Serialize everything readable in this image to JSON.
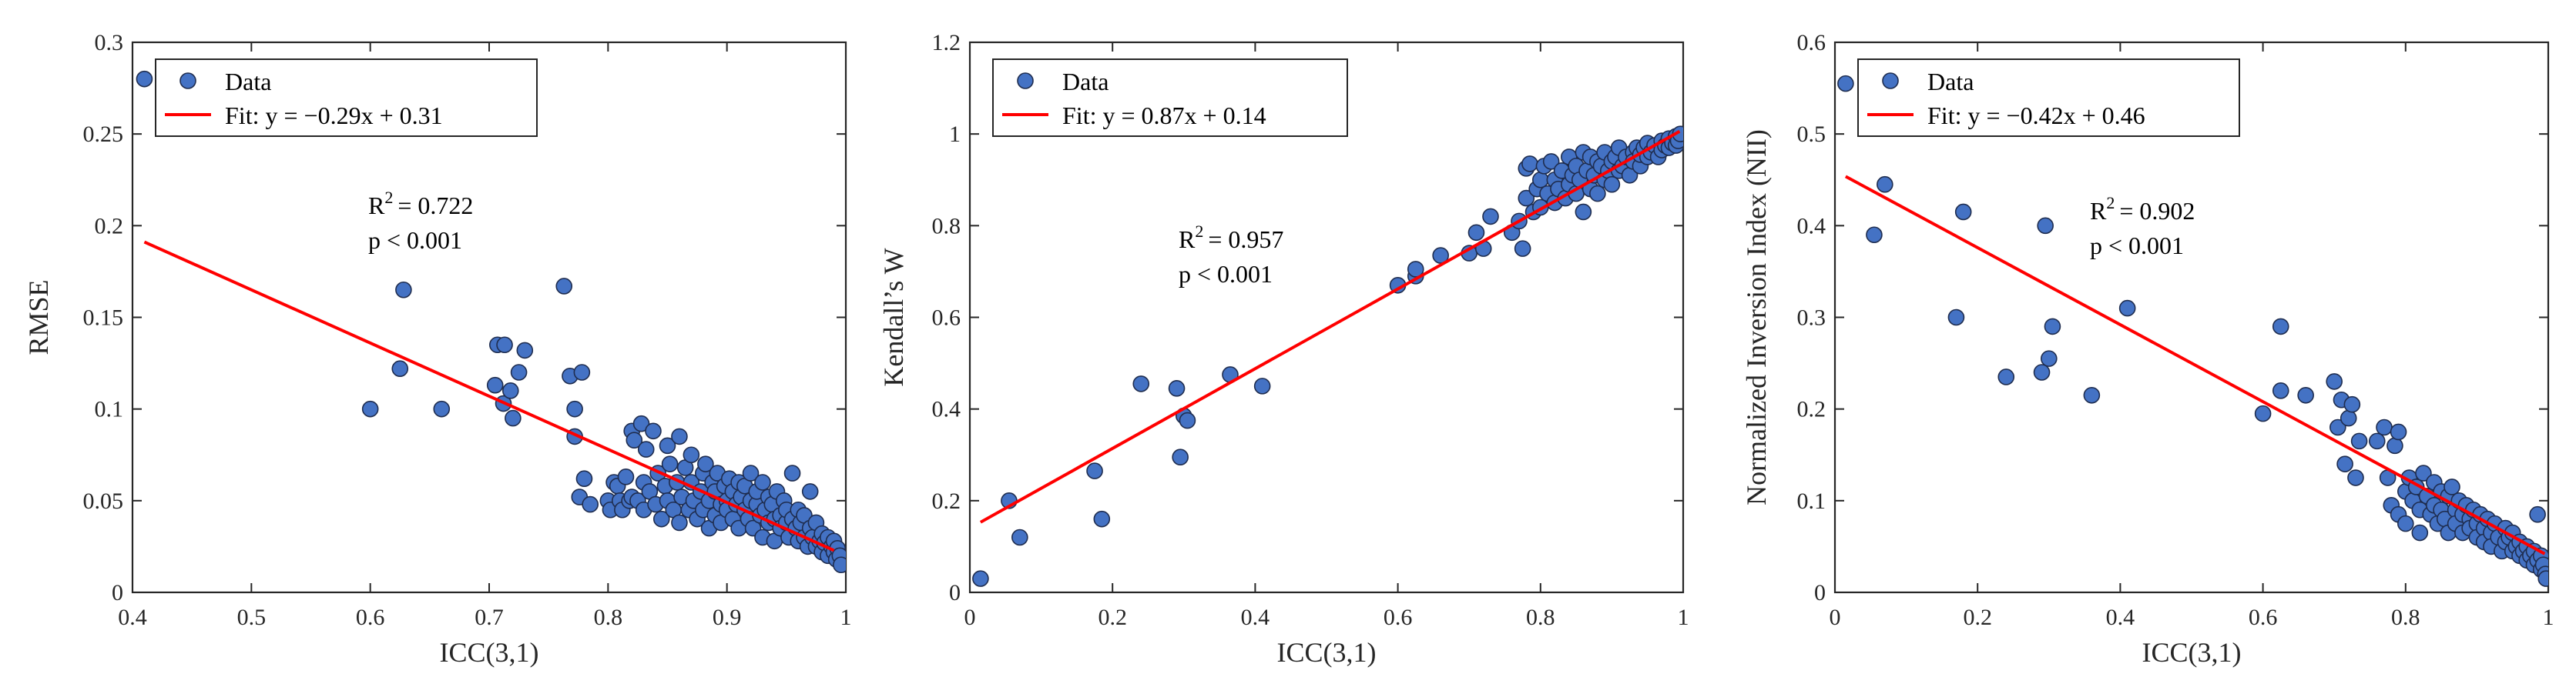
{
  "chart_data": [
    {
      "type": "scatter",
      "title": "",
      "xlabel": "ICC(3,1)",
      "ylabel": "RMSE",
      "xlim": [
        0.4,
        1
      ],
      "ylim": [
        0,
        0.3
      ],
      "xticks": [
        0.4,
        0.5,
        0.6,
        0.7,
        0.8,
        0.9,
        1
      ],
      "xtick_labels": [
        "0.4",
        "0.5",
        "0.6",
        "0.7",
        "0.8",
        "0.9",
        "1"
      ],
      "yticks": [
        0,
        0.05,
        0.1,
        0.15,
        0.2,
        0.25,
        0.3
      ],
      "ytick_labels": [
        "0",
        "0.05",
        "0.1",
        "0.15",
        "0.2",
        "0.25",
        "0.3"
      ],
      "legend": {
        "data_label": "Data",
        "fit_label": "Fit: y = −0.29x + 0.31",
        "position": "top-left"
      },
      "fit": {
        "slope": -0.29,
        "intercept": 0.31,
        "x_range": [
          0.41,
          0.99
        ]
      },
      "r2_prefix": "R",
      "r2_sup": "2",
      "r2_value": "= 0.722",
      "p_text": "p < 0.001",
      "colors": {
        "marker": "#4472c4",
        "edge": "#1f2d4f",
        "fit": "#ff0000"
      },
      "points": [
        [
          0.41,
          0.28
        ],
        [
          0.6,
          0.1
        ],
        [
          0.625,
          0.122
        ],
        [
          0.628,
          0.165
        ],
        [
          0.66,
          0.1
        ],
        [
          0.705,
          0.113
        ],
        [
          0.707,
          0.135
        ],
        [
          0.712,
          0.103
        ],
        [
          0.713,
          0.135
        ],
        [
          0.718,
          0.11
        ],
        [
          0.72,
          0.095
        ],
        [
          0.725,
          0.12
        ],
        [
          0.73,
          0.132
        ],
        [
          0.763,
          0.167
        ],
        [
          0.768,
          0.118
        ],
        [
          0.772,
          0.1
        ],
        [
          0.772,
          0.085
        ],
        [
          0.776,
          0.052
        ],
        [
          0.778,
          0.12
        ],
        [
          0.78,
          0.062
        ],
        [
          0.785,
          0.048
        ],
        [
          0.8,
          0.05
        ],
        [
          0.802,
          0.045
        ],
        [
          0.805,
          0.06
        ],
        [
          0.808,
          0.058
        ],
        [
          0.81,
          0.05
        ],
        [
          0.812,
          0.045
        ],
        [
          0.815,
          0.063
        ],
        [
          0.818,
          0.05
        ],
        [
          0.82,
          0.088
        ],
        [
          0.82,
          0.052
        ],
        [
          0.822,
          0.083
        ],
        [
          0.825,
          0.05
        ],
        [
          0.828,
          0.092
        ],
        [
          0.83,
          0.06
        ],
        [
          0.83,
          0.045
        ],
        [
          0.832,
          0.078
        ],
        [
          0.835,
          0.055
        ],
        [
          0.838,
          0.088
        ],
        [
          0.84,
          0.048
        ],
        [
          0.842,
          0.065
        ],
        [
          0.845,
          0.04
        ],
        [
          0.848,
          0.058
        ],
        [
          0.85,
          0.08
        ],
        [
          0.85,
          0.05
        ],
        [
          0.852,
          0.07
        ],
        [
          0.855,
          0.045
        ],
        [
          0.858,
          0.06
        ],
        [
          0.86,
          0.085
        ],
        [
          0.86,
          0.038
        ],
        [
          0.862,
          0.052
        ],
        [
          0.865,
          0.068
        ],
        [
          0.868,
          0.045
        ],
        [
          0.87,
          0.06
        ],
        [
          0.87,
          0.075
        ],
        [
          0.872,
          0.05
        ],
        [
          0.875,
          0.04
        ],
        [
          0.878,
          0.055
        ],
        [
          0.88,
          0.065
        ],
        [
          0.88,
          0.045
        ],
        [
          0.882,
          0.07
        ],
        [
          0.885,
          0.05
        ],
        [
          0.885,
          0.035
        ],
        [
          0.888,
          0.06
        ],
        [
          0.89,
          0.042
        ],
        [
          0.89,
          0.055
        ],
        [
          0.892,
          0.065
        ],
        [
          0.895,
          0.048
        ],
        [
          0.895,
          0.038
        ],
        [
          0.898,
          0.058
        ],
        [
          0.9,
          0.05
        ],
        [
          0.9,
          0.045
        ],
        [
          0.902,
          0.062
        ],
        [
          0.905,
          0.04
        ],
        [
          0.905,
          0.055
        ],
        [
          0.908,
          0.048
        ],
        [
          0.91,
          0.035
        ],
        [
          0.91,
          0.06
        ],
        [
          0.912,
          0.052
        ],
        [
          0.915,
          0.045
        ],
        [
          0.915,
          0.058
        ],
        [
          0.918,
          0.04
        ],
        [
          0.92,
          0.05
        ],
        [
          0.92,
          0.065
        ],
        [
          0.922,
          0.035
        ],
        [
          0.925,
          0.048
        ],
        [
          0.925,
          0.055
        ],
        [
          0.928,
          0.042
        ],
        [
          0.93,
          0.03
        ],
        [
          0.93,
          0.06
        ],
        [
          0.932,
          0.045
        ],
        [
          0.935,
          0.052
        ],
        [
          0.935,
          0.038
        ],
        [
          0.938,
          0.048
        ],
        [
          0.94,
          0.04
        ],
        [
          0.94,
          0.028
        ],
        [
          0.942,
          0.055
        ],
        [
          0.945,
          0.042
        ],
        [
          0.945,
          0.035
        ],
        [
          0.948,
          0.05
        ],
        [
          0.95,
          0.038
        ],
        [
          0.95,
          0.045
        ],
        [
          0.952,
          0.03
        ],
        [
          0.955,
          0.04
        ],
        [
          0.955,
          0.065
        ],
        [
          0.958,
          0.035
        ],
        [
          0.96,
          0.045
        ],
        [
          0.96,
          0.028
        ],
        [
          0.962,
          0.038
        ],
        [
          0.965,
          0.03
        ],
        [
          0.965,
          0.042
        ],
        [
          0.968,
          0.025
        ],
        [
          0.97,
          0.035
        ],
        [
          0.97,
          0.055
        ],
        [
          0.972,
          0.03
        ],
        [
          0.975,
          0.025
        ],
        [
          0.975,
          0.038
        ],
        [
          0.978,
          0.028
        ],
        [
          0.98,
          0.032
        ],
        [
          0.98,
          0.022
        ],
        [
          0.982,
          0.027
        ],
        [
          0.985,
          0.03
        ],
        [
          0.985,
          0.02
        ],
        [
          0.988,
          0.025
        ],
        [
          0.99,
          0.022
        ],
        [
          0.99,
          0.028
        ],
        [
          0.992,
          0.018
        ],
        [
          0.993,
          0.024
        ],
        [
          0.995,
          0.02
        ],
        [
          0.996,
          0.015
        ]
      ]
    },
    {
      "type": "scatter",
      "title": "",
      "xlabel": "ICC(3,1)",
      "ylabel": "Kendall’s W",
      "xlim": [
        0,
        1
      ],
      "ylim": [
        0,
        1.2
      ],
      "xticks": [
        0,
        0.2,
        0.4,
        0.6,
        0.8,
        1
      ],
      "xtick_labels": [
        "0",
        "0.2",
        "0.4",
        "0.6",
        "0.8",
        "1"
      ],
      "yticks": [
        0,
        0.2,
        0.4,
        0.6,
        0.8,
        1,
        1.2
      ],
      "ytick_labels": [
        "0",
        "0.2",
        "0.4",
        "0.6",
        "0.8",
        "1",
        "1.2"
      ],
      "legend": {
        "data_label": "Data",
        "fit_label": "Fit: y = 0.87x + 0.14",
        "position": "top-left"
      },
      "fit": {
        "slope": 0.87,
        "intercept": 0.14,
        "x_range": [
          0.015,
          0.995
        ]
      },
      "r2_prefix": "R",
      "r2_sup": "2",
      "r2_value": "= 0.957",
      "p_text": "p < 0.001",
      "colors": {
        "marker": "#4472c4",
        "edge": "#1f2d4f",
        "fit": "#ff0000"
      },
      "points": [
        [
          0.015,
          0.03
        ],
        [
          0.055,
          0.2
        ],
        [
          0.07,
          0.12
        ],
        [
          0.175,
          0.265
        ],
        [
          0.185,
          0.16
        ],
        [
          0.24,
          0.455
        ],
        [
          0.29,
          0.445
        ],
        [
          0.295,
          0.295
        ],
        [
          0.3,
          0.385
        ],
        [
          0.305,
          0.375
        ],
        [
          0.365,
          0.475
        ],
        [
          0.41,
          0.45
        ],
        [
          0.6,
          0.67
        ],
        [
          0.625,
          0.69
        ],
        [
          0.625,
          0.705
        ],
        [
          0.66,
          0.735
        ],
        [
          0.7,
          0.74
        ],
        [
          0.71,
          0.785
        ],
        [
          0.72,
          0.75
        ],
        [
          0.73,
          0.82
        ],
        [
          0.76,
          0.785
        ],
        [
          0.77,
          0.81
        ],
        [
          0.775,
          0.75
        ],
        [
          0.78,
          0.925
        ],
        [
          0.78,
          0.86
        ],
        [
          0.785,
          0.935
        ],
        [
          0.79,
          0.83
        ],
        [
          0.795,
          0.88
        ],
        [
          0.8,
          0.9
        ],
        [
          0.8,
          0.84
        ],
        [
          0.805,
          0.93
        ],
        [
          0.81,
          0.87
        ],
        [
          0.815,
          0.94
        ],
        [
          0.82,
          0.9
        ],
        [
          0.82,
          0.85
        ],
        [
          0.825,
          0.88
        ],
        [
          0.83,
          0.92
        ],
        [
          0.835,
          0.86
        ],
        [
          0.84,
          0.95
        ],
        [
          0.84,
          0.89
        ],
        [
          0.845,
          0.91
        ],
        [
          0.85,
          0.87
        ],
        [
          0.85,
          0.93
        ],
        [
          0.855,
          0.9
        ],
        [
          0.86,
          0.83
        ],
        [
          0.86,
          0.96
        ],
        [
          0.865,
          0.92
        ],
        [
          0.87,
          0.88
        ],
        [
          0.87,
          0.95
        ],
        [
          0.875,
          0.91
        ],
        [
          0.88,
          0.94
        ],
        [
          0.88,
          0.87
        ],
        [
          0.885,
          0.93
        ],
        [
          0.89,
          0.9
        ],
        [
          0.89,
          0.96
        ],
        [
          0.895,
          0.92
        ],
        [
          0.9,
          0.94
        ],
        [
          0.9,
          0.89
        ],
        [
          0.905,
          0.95
        ],
        [
          0.91,
          0.92
        ],
        [
          0.91,
          0.97
        ],
        [
          0.915,
          0.93
        ],
        [
          0.92,
          0.95
        ],
        [
          0.925,
          0.91
        ],
        [
          0.93,
          0.96
        ],
        [
          0.93,
          0.94
        ],
        [
          0.935,
          0.97
        ],
        [
          0.94,
          0.93
        ],
        [
          0.94,
          0.955
        ],
        [
          0.945,
          0.97
        ],
        [
          0.95,
          0.95
        ],
        [
          0.95,
          0.98
        ],
        [
          0.955,
          0.96
        ],
        [
          0.96,
          0.975
        ],
        [
          0.965,
          0.95
        ],
        [
          0.97,
          0.985
        ],
        [
          0.97,
          0.965
        ],
        [
          0.975,
          0.975
        ],
        [
          0.98,
          0.99
        ],
        [
          0.98,
          0.97
        ],
        [
          0.985,
          0.98
        ],
        [
          0.99,
          0.995
        ],
        [
          0.99,
          0.975
        ],
        [
          0.993,
          0.985
        ],
        [
          0.996,
          1.0
        ]
      ]
    },
    {
      "type": "scatter",
      "title": "",
      "xlabel": "ICC(3,1)",
      "ylabel": "Normalized  Inversion  Index (NII)",
      "xlim": [
        0,
        1
      ],
      "ylim": [
        0,
        0.6
      ],
      "xticks": [
        0,
        0.2,
        0.4,
        0.6,
        0.8,
        1
      ],
      "xtick_labels": [
        "0",
        "0.2",
        "0.4",
        "0.6",
        "0.8",
        "1"
      ],
      "yticks": [
        0,
        0.1,
        0.2,
        0.3,
        0.4,
        0.5,
        0.6
      ],
      "ytick_labels": [
        "0",
        "0.1",
        "0.2",
        "0.3",
        "0.4",
        "0.5",
        "0.6"
      ],
      "legend": {
        "data_label": "Data",
        "fit_label": "Fit: y = −0.42x + 0.46",
        "position": "top-left"
      },
      "fit": {
        "slope": -0.42,
        "intercept": 0.46,
        "x_range": [
          0.015,
          0.995
        ]
      },
      "r2_prefix": "R",
      "r2_sup": "2",
      "r2_value": "= 0.902",
      "p_text": "p < 0.001",
      "colors": {
        "marker": "#4472c4",
        "edge": "#1f2d4f",
        "fit": "#ff0000"
      },
      "points": [
        [
          0.015,
          0.555
        ],
        [
          0.055,
          0.39
        ],
        [
          0.07,
          0.445
        ],
        [
          0.17,
          0.3
        ],
        [
          0.18,
          0.415
        ],
        [
          0.24,
          0.235
        ],
        [
          0.29,
          0.24
        ],
        [
          0.295,
          0.4
        ],
        [
          0.3,
          0.255
        ],
        [
          0.305,
          0.29
        ],
        [
          0.36,
          0.215
        ],
        [
          0.41,
          0.31
        ],
        [
          0.6,
          0.195
        ],
        [
          0.625,
          0.22
        ],
        [
          0.625,
          0.29
        ],
        [
          0.66,
          0.215
        ],
        [
          0.7,
          0.23
        ],
        [
          0.705,
          0.18
        ],
        [
          0.71,
          0.21
        ],
        [
          0.715,
          0.14
        ],
        [
          0.72,
          0.19
        ],
        [
          0.725,
          0.205
        ],
        [
          0.73,
          0.125
        ],
        [
          0.735,
          0.165
        ],
        [
          0.76,
          0.165
        ],
        [
          0.77,
          0.18
        ],
        [
          0.775,
          0.125
        ],
        [
          0.78,
          0.095
        ],
        [
          0.785,
          0.16
        ],
        [
          0.79,
          0.085
        ],
        [
          0.79,
          0.175
        ],
        [
          0.8,
          0.11
        ],
        [
          0.8,
          0.075
        ],
        [
          0.805,
          0.125
        ],
        [
          0.81,
          0.1
        ],
        [
          0.815,
          0.115
        ],
        [
          0.82,
          0.09
        ],
        [
          0.82,
          0.065
        ],
        [
          0.825,
          0.13
        ],
        [
          0.83,
          0.105
        ],
        [
          0.835,
          0.085
        ],
        [
          0.84,
          0.12
        ],
        [
          0.84,
          0.095
        ],
        [
          0.845,
          0.075
        ],
        [
          0.85,
          0.11
        ],
        [
          0.85,
          0.09
        ],
        [
          0.855,
          0.08
        ],
        [
          0.86,
          0.105
        ],
        [
          0.86,
          0.065
        ],
        [
          0.865,
          0.115
        ],
        [
          0.87,
          0.09
        ],
        [
          0.87,
          0.075
        ],
        [
          0.875,
          0.1
        ],
        [
          0.88,
          0.085
        ],
        [
          0.88,
          0.065
        ],
        [
          0.885,
          0.095
        ],
        [
          0.89,
          0.08
        ],
        [
          0.89,
          0.07
        ],
        [
          0.895,
          0.09
        ],
        [
          0.9,
          0.075
        ],
        [
          0.9,
          0.06
        ],
        [
          0.905,
          0.085
        ],
        [
          0.91,
          0.07
        ],
        [
          0.91,
          0.055
        ],
        [
          0.915,
          0.08
        ],
        [
          0.92,
          0.065
        ],
        [
          0.92,
          0.05
        ],
        [
          0.925,
          0.075
        ],
        [
          0.93,
          0.06
        ],
        [
          0.935,
          0.045
        ],
        [
          0.94,
          0.07
        ],
        [
          0.94,
          0.055
        ],
        [
          0.945,
          0.06
        ],
        [
          0.95,
          0.045
        ],
        [
          0.95,
          0.065
        ],
        [
          0.955,
          0.05
        ],
        [
          0.96,
          0.04
        ],
        [
          0.96,
          0.055
        ],
        [
          0.965,
          0.045
        ],
        [
          0.97,
          0.035
        ],
        [
          0.97,
          0.05
        ],
        [
          0.975,
          0.04
        ],
        [
          0.98,
          0.03
        ],
        [
          0.98,
          0.045
        ],
        [
          0.985,
          0.035
        ],
        [
          0.985,
          0.085
        ],
        [
          0.99,
          0.025
        ],
        [
          0.99,
          0.04
        ],
        [
          0.993,
          0.03
        ],
        [
          0.996,
          0.02
        ],
        [
          0.997,
          0.015
        ]
      ]
    }
  ]
}
